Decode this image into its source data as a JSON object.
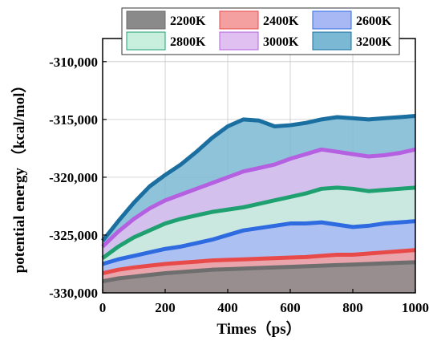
{
  "chart_data": {
    "type": "area",
    "title": "",
    "xlabel": "Times（ps）",
    "ylabel": "potential energy （kcal/mol）",
    "xlim": [
      0,
      1000
    ],
    "ylim": [
      -330000,
      -308000
    ],
    "x_ticks": [
      0,
      200,
      400,
      600,
      800,
      1000
    ],
    "x_tick_labels": [
      "0",
      "200",
      "400",
      "600",
      "800",
      "1000"
    ],
    "y_ticks": [
      -330000,
      -325000,
      -320000,
      -315000,
      -310000
    ],
    "y_tick_labels": [
      "-330,000",
      "-325,000",
      "-320,000",
      "-315,000",
      "-310,000"
    ],
    "grid": true,
    "legend_position": "top",
    "x": [
      0,
      50,
      100,
      150,
      200,
      250,
      300,
      350,
      400,
      450,
      500,
      550,
      600,
      650,
      700,
      750,
      800,
      850,
      900,
      950,
      1000
    ],
    "series": [
      {
        "name": "2200K",
        "fill": "#8a8a8a",
        "line": "#6e6e6e",
        "values": [
          -329000,
          -328750,
          -328600,
          -328450,
          -328300,
          -328200,
          -328100,
          -328000,
          -327950,
          -327900,
          -327850,
          -327800,
          -327750,
          -327700,
          -327650,
          -327600,
          -327550,
          -327500,
          -327450,
          -327400,
          -327350
        ]
      },
      {
        "name": "2400K",
        "fill": "#f4a0a0",
        "line": "#e84a4a",
        "values": [
          -328300,
          -328000,
          -327800,
          -327650,
          -327500,
          -327400,
          -327300,
          -327200,
          -327150,
          -327100,
          -327050,
          -327000,
          -326950,
          -326900,
          -326800,
          -326700,
          -326700,
          -326600,
          -326500,
          -326400,
          -326300
        ]
      },
      {
        "name": "2600K",
        "fill": "#a8b8f4",
        "line": "#2f6be0",
        "values": [
          -327500,
          -327100,
          -326800,
          -326500,
          -326200,
          -326000,
          -325700,
          -325400,
          -325000,
          -324600,
          -324400,
          -324200,
          -324000,
          -324000,
          -323900,
          -324100,
          -324300,
          -324200,
          -324000,
          -323900,
          -323800
        ]
      },
      {
        "name": "2800K",
        "fill": "#c8eedd",
        "line": "#1fa070",
        "values": [
          -327000,
          -326000,
          -325200,
          -324600,
          -324000,
          -323600,
          -323300,
          -323000,
          -322800,
          -322600,
          -322300,
          -322000,
          -321700,
          -321400,
          -321000,
          -320900,
          -321000,
          -321200,
          -321100,
          -321000,
          -320900
        ]
      },
      {
        "name": "3000K",
        "fill": "#e0c0f0",
        "line": "#b460e0",
        "values": [
          -326000,
          -324700,
          -323600,
          -322700,
          -322000,
          -321500,
          -321000,
          -320500,
          -320000,
          -319500,
          -319200,
          -318900,
          -318400,
          -318000,
          -317600,
          -317800,
          -318000,
          -318200,
          -318100,
          -317900,
          -317600
        ]
      },
      {
        "name": "3200K",
        "fill": "#7ab8d4",
        "line": "#1a6fa0",
        "values": [
          -325500,
          -323800,
          -322200,
          -320800,
          -319800,
          -318900,
          -317800,
          -316600,
          -315600,
          -315000,
          -315100,
          -315600,
          -315500,
          -315300,
          -315000,
          -314800,
          -314900,
          -315000,
          -314900,
          -314800,
          -314700
        ]
      }
    ]
  }
}
